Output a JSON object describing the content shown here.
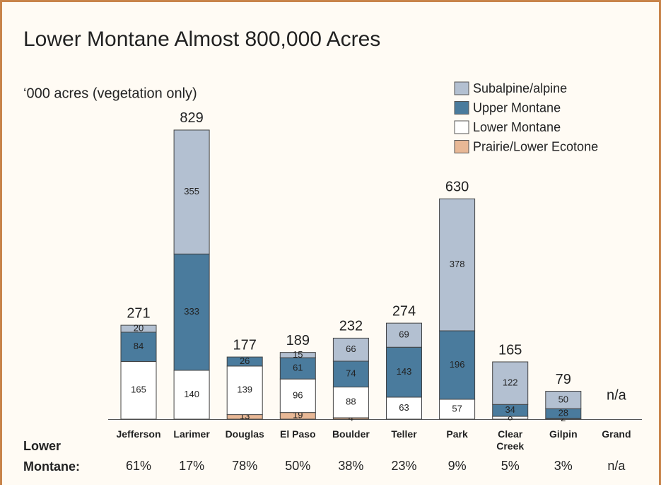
{
  "chart_data": {
    "type": "stacked_bar",
    "title": "Lower Montane Almost 800,000 Acres",
    "subtitle": "‘000 acres (vegetation only)",
    "categories": [
      "Jefferson",
      "Larimer",
      "Douglas",
      "El Paso",
      "Boulder",
      "Teller",
      "Park",
      "Clear Creek",
      "Gilpin",
      "Grand"
    ],
    "series": [
      {
        "name": "Prairie/Lower Ecotone",
        "color": "#e8b896",
        "values": [
          null,
          null,
          13,
          19,
          4,
          null,
          null,
          null,
          null,
          null
        ]
      },
      {
        "name": "Lower Montane",
        "color": "#ffffff",
        "values": [
          165,
          140,
          139,
          96,
          88,
          63,
          57,
          8,
          2,
          null
        ]
      },
      {
        "name": "Upper Montane",
        "color": "#4a7b9d",
        "values": [
          84,
          333,
          26,
          61,
          74,
          143,
          196,
          34,
          28,
          null
        ]
      },
      {
        "name": "Subalpine/alpine",
        "color": "#b3c0d1",
        "values": [
          20,
          355,
          null,
          15,
          66,
          69,
          378,
          122,
          50,
          null
        ]
      }
    ],
    "totals": [
      271,
      829,
      177,
      189,
      232,
      274,
      630,
      165,
      79,
      null
    ],
    "totals_missing_label": "n/a",
    "share_row_label": "Lower Montane:",
    "lower_montane_share": [
      61,
      17,
      78,
      50,
      38,
      23,
      9,
      5,
      3,
      null
    ],
    "lower_montane_share_labels": [
      "61%",
      "17%",
      "78%",
      "50%",
      "38%",
      "23%",
      "9%",
      "5%",
      "3%",
      "n/a"
    ],
    "ylim": [
      0,
      1000
    ]
  }
}
